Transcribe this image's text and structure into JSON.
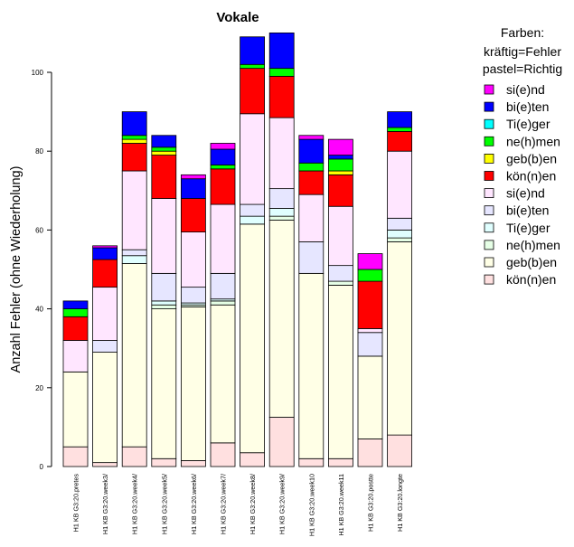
{
  "chart_data": {
    "type": "bar",
    "stacked": true,
    "title": "Vokale",
    "ylabel": "Anzahl Fehler (ohne Wiederholung)",
    "xlabel": "",
    "ylim": [
      0,
      110
    ],
    "yticks": [
      0,
      20,
      40,
      60,
      80,
      100
    ],
    "grid": false,
    "legend_position": "right",
    "legend_title": [
      "Farben:",
      "kräftig=Fehler",
      "pastel=Richtig"
    ],
    "categories": [
      "H1 KB G3:20.pretes",
      "H1 KB G3:20.week3/",
      "H1 KB G3:20.week4/",
      "H1 KB G3:20.week5/",
      "H1 KB G3:20.week6/",
      "H1 KB G3:20.week7/",
      "H1 KB G3:20.week8/",
      "H1 KB G3:20.week9/",
      "H1 KB G3:20.week10",
      "H1 KB G3:20.week11",
      "H1 KB G3:20.postte",
      "H1 KB G3:20.longte"
    ],
    "series": [
      {
        "name": "kön(n)en",
        "color": "#FFE0E0",
        "values": [
          5,
          1,
          5,
          2,
          1.5,
          6,
          3.5,
          12.5,
          2,
          2,
          7,
          8
        ]
      },
      {
        "name": "geb(b)en",
        "color": "#FFFFE6",
        "values": [
          19,
          28,
          46.5,
          38,
          39,
          35,
          58,
          50,
          47,
          44,
          21,
          49
        ]
      },
      {
        "name": "ne(h)men",
        "color": "#E6FFE6",
        "values": [
          0,
          0,
          0,
          1,
          0.5,
          1,
          0,
          1,
          0,
          1,
          0,
          1
        ]
      },
      {
        "name": "Ti(e)ger",
        "color": "#E0FFFF",
        "values": [
          0,
          0,
          2,
          1,
          0.5,
          0.5,
          2,
          2,
          0,
          0,
          0,
          2
        ]
      },
      {
        "name": "bi(e)ten",
        "color": "#E6E6FF",
        "values": [
          0,
          3,
          1.5,
          7,
          4,
          6.5,
          3,
          5,
          8,
          4,
          6,
          3
        ]
      },
      {
        "name": "si(e)nd",
        "color": "#FFE6FF",
        "values": [
          8,
          13.5,
          20,
          19,
          14,
          17.5,
          23,
          18,
          12,
          15,
          1,
          17
        ]
      },
      {
        "name": "kön(n)en",
        "color": "#FF0000",
        "values": [
          6,
          7,
          7,
          11,
          8.5,
          9,
          11.5,
          10.5,
          6,
          8,
          12,
          5
        ]
      },
      {
        "name": "geb(b)en",
        "color": "#FFFF00",
        "values": [
          0,
          0,
          1,
          1,
          0,
          0,
          0,
          0,
          0,
          1,
          0,
          0
        ]
      },
      {
        "name": "ne(h)men",
        "color": "#00FF00",
        "values": [
          2,
          0,
          1,
          1,
          0,
          1,
          1,
          2,
          2,
          3,
          3,
          1
        ]
      },
      {
        "name": "Ti(e)ger",
        "color": "#00FFFF",
        "values": [
          0,
          0,
          0,
          0,
          0,
          0,
          0,
          0,
          0,
          0,
          0,
          0
        ]
      },
      {
        "name": "bi(e)ten",
        "color": "#0000FF",
        "values": [
          2,
          3,
          6,
          3,
          5,
          4,
          7,
          9,
          6,
          1,
          0,
          4
        ]
      },
      {
        "name": "si(e)nd",
        "color": "#FF00FF",
        "values": [
          0,
          0.5,
          0,
          0,
          1,
          1.5,
          0,
          0,
          1,
          4,
          4,
          0
        ]
      }
    ],
    "legend_order": [
      {
        "label": "si(e)nd",
        "color": "#FF00FF"
      },
      {
        "label": "bi(e)ten",
        "color": "#0000FF"
      },
      {
        "label": "Ti(e)ger",
        "color": "#00FFFF"
      },
      {
        "label": "ne(h)men",
        "color": "#00FF00"
      },
      {
        "label": "geb(b)en",
        "color": "#FFFF00"
      },
      {
        "label": "kön(n)en",
        "color": "#FF0000"
      },
      {
        "label": "si(e)nd",
        "color": "#FFE6FF"
      },
      {
        "label": "bi(e)ten",
        "color": "#E6E6FF"
      },
      {
        "label": "Ti(e)ger",
        "color": "#E0FFFF"
      },
      {
        "label": "ne(h)men",
        "color": "#E6FFE6"
      },
      {
        "label": "geb(b)en",
        "color": "#FFFFE6"
      },
      {
        "label": "kön(n)en",
        "color": "#FFE0E0"
      }
    ]
  }
}
